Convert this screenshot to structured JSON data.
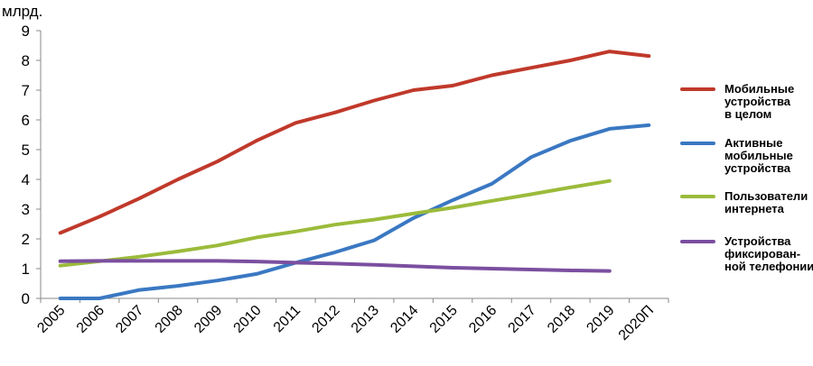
{
  "chart_data": {
    "type": "line",
    "ylabel": "млрд.",
    "ylim": [
      0,
      9
    ],
    "yticks": [
      0,
      1,
      2,
      3,
      4,
      5,
      6,
      7,
      8,
      9
    ],
    "categories": [
      "2005",
      "2006",
      "2007",
      "2008",
      "2009",
      "2010",
      "2011",
      "2012",
      "2013",
      "2014",
      "2015",
      "2016",
      "2017",
      "2018",
      "2019",
      "2020П"
    ],
    "grid": false,
    "legend_position": "right",
    "series": [
      {
        "name": [
          "Мобильные",
          "устройства",
          "в целом"
        ],
        "color": "#c0392b",
        "values": [
          2.2,
          2.75,
          3.35,
          4.0,
          4.6,
          5.3,
          5.9,
          6.25,
          6.65,
          7.0,
          7.15,
          7.5,
          7.75,
          8.0,
          8.3,
          8.15
        ]
      },
      {
        "name": [
          "Активные",
          "мобильные",
          "устройства"
        ],
        "color": "#3a78c2",
        "values": [
          0,
          0,
          0.28,
          0.42,
          0.6,
          0.82,
          1.2,
          1.55,
          1.95,
          2.7,
          3.3,
          3.85,
          4.75,
          5.3,
          5.7,
          5.82
        ]
      },
      {
        "name": [
          "Пользователи",
          "интернета"
        ],
        "color": "#9bbb3b",
        "values": [
          1.1,
          1.25,
          1.4,
          1.58,
          1.78,
          2.05,
          2.25,
          2.48,
          2.65,
          2.85,
          3.05,
          3.28,
          3.5,
          3.73,
          3.95,
          null
        ]
      },
      {
        "name": [
          "Устройства",
          "фиксирован-",
          "ной телефонии"
        ],
        "color": "#7b4fa0",
        "values": [
          1.25,
          1.26,
          1.26,
          1.26,
          1.26,
          1.24,
          1.2,
          1.17,
          1.13,
          1.08,
          1.03,
          1.0,
          0.97,
          0.94,
          0.92,
          null
        ]
      }
    ]
  }
}
